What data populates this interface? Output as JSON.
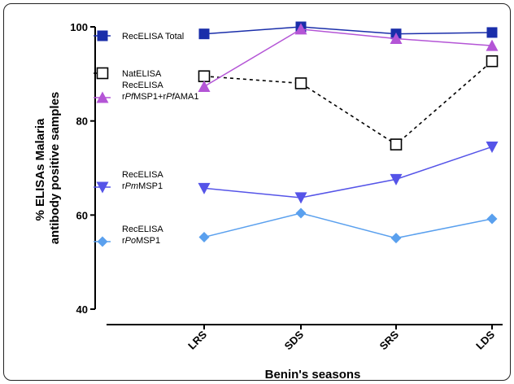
{
  "chart_data": {
    "type": "line",
    "title": "",
    "xlabel": "Benin's seasons",
    "ylabel_lines": [
      "% ELISAs Malaria",
      "antibody  positive samples"
    ],
    "categories": [
      "LRS",
      "SDS",
      "SRS",
      "LDS"
    ],
    "ylim": [
      40,
      100
    ],
    "yticks": [
      40,
      60,
      80,
      100
    ],
    "grid": false,
    "legend_position": "left, inside plot",
    "series": [
      {
        "name": "RecELISA Total",
        "name_parts": [
          [
            {
              "t": "RecELISA Total",
              "i": false
            }
          ]
        ],
        "values": [
          98.5,
          100,
          98.5,
          98.8
        ],
        "color": "#1a2eaa",
        "marker": "square",
        "dashed": false
      },
      {
        "name": "NatELISA",
        "name_parts": [
          [
            {
              "t": "NatELISA",
              "i": false
            }
          ]
        ],
        "values": [
          89.5,
          88,
          75,
          92.7
        ],
        "color": "#000000",
        "marker": "open-square",
        "dashed": true
      },
      {
        "name": "RecELISA rPfMSP1+rPfAMA1",
        "name_parts": [
          [
            {
              "t": "RecELISA",
              "i": false
            }
          ],
          [
            {
              "t": "r",
              "i": false
            },
            {
              "t": "Pf",
              "i": true
            },
            {
              "t": "MSP1+r",
              "i": false
            },
            {
              "t": "Pf",
              "i": true
            },
            {
              "t": "AMA1",
              "i": false
            }
          ]
        ],
        "values": [
          87.3,
          99.5,
          97.5,
          96
        ],
        "color": "#b455d6",
        "marker": "triangle-up",
        "dashed": false
      },
      {
        "name": "RecELISA rPmMSP1",
        "name_parts": [
          [
            {
              "t": "RecELISA",
              "i": false
            }
          ],
          [
            {
              "t": "r",
              "i": false
            },
            {
              "t": "Pm",
              "i": true
            },
            {
              "t": "MSP1",
              "i": false
            }
          ]
        ],
        "values": [
          65.7,
          63.7,
          67.6,
          74.5
        ],
        "color": "#5554e8",
        "marker": "triangle-down",
        "dashed": false
      },
      {
        "name": "RecELISA rPoMSP1",
        "name_parts": [
          [
            {
              "t": "RecELISA",
              "i": false
            }
          ],
          [
            {
              "t": "r",
              "i": false
            },
            {
              "t": "Po",
              "i": true
            },
            {
              "t": "MSP1",
              "i": false
            }
          ]
        ],
        "values": [
          55.3,
          60.4,
          55.1,
          59.2
        ],
        "color": "#5aa0ee",
        "marker": "diamond",
        "dashed": false
      }
    ]
  }
}
